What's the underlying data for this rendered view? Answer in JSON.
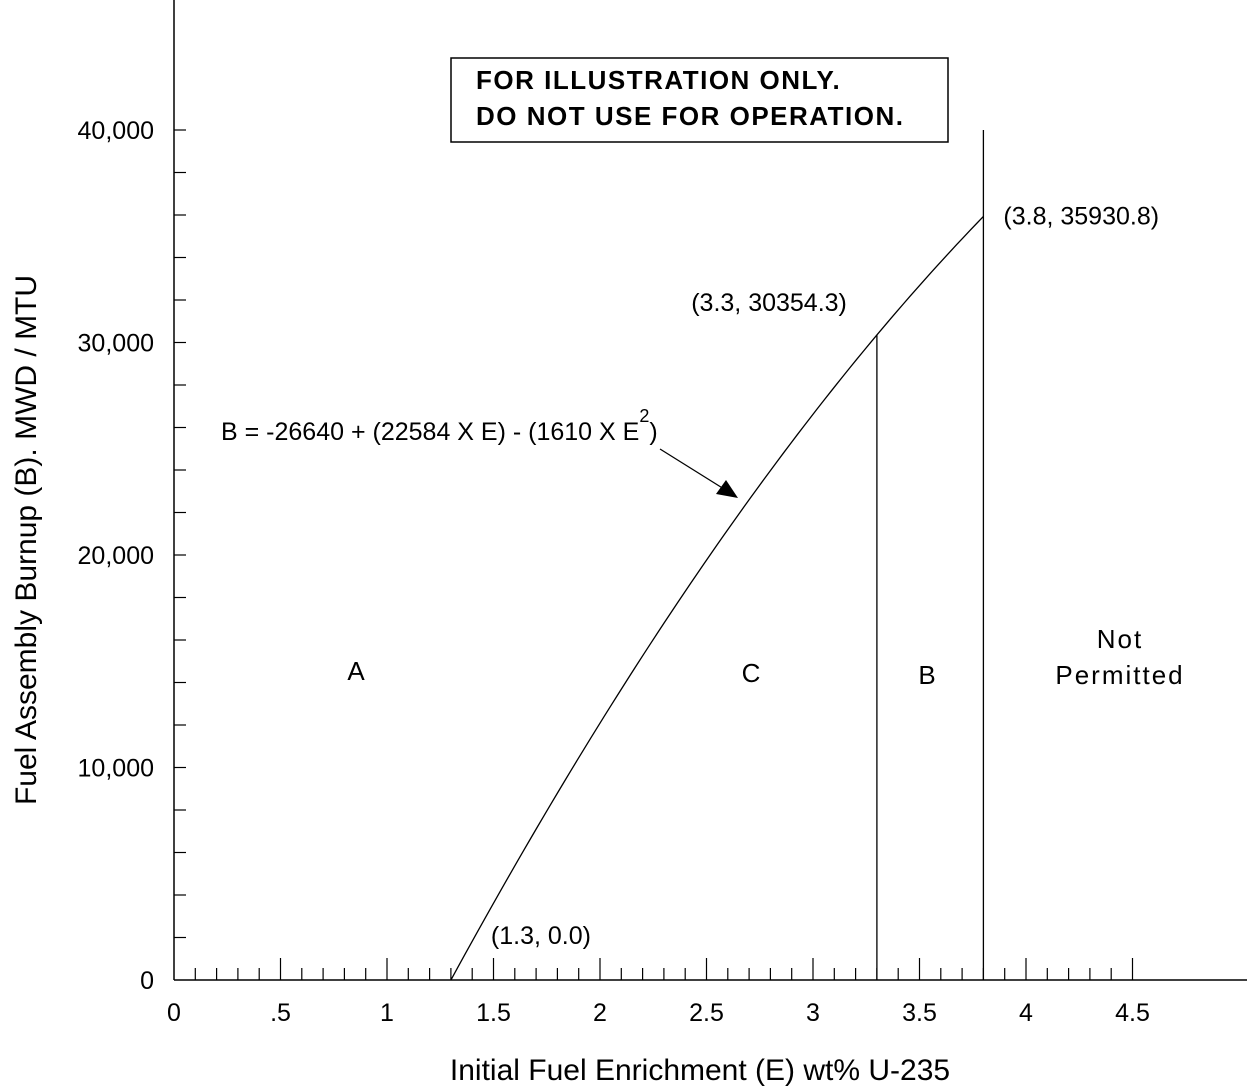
{
  "chart_data": {
    "type": "line",
    "xlabel": "Initial Fuel Enrichment (E)  wt% U-235",
    "ylabel": "Fuel Assembly Burnup  (B). MWD / MTU",
    "xlim": [
      0,
      5
    ],
    "ylim": [
      0,
      40000
    ],
    "x_ticks": [
      {
        "value": 0,
        "label": "0"
      },
      {
        "value": 0.5,
        "label": ".5"
      },
      {
        "value": 1,
        "label": "1"
      },
      {
        "value": 1.5,
        "label": "1.5"
      },
      {
        "value": 2,
        "label": "2"
      },
      {
        "value": 2.5,
        "label": "2.5"
      },
      {
        "value": 3,
        "label": "3"
      },
      {
        "value": 3.5,
        "label": "3.5"
      },
      {
        "value": 4,
        "label": "4"
      },
      {
        "value": 4.5,
        "label": "4.5"
      }
    ],
    "y_ticks": [
      {
        "value": 0,
        "label": "0"
      },
      {
        "value": 10000,
        "label": "10,000"
      },
      {
        "value": 20000,
        "label": "20,000"
      },
      {
        "value": 30000,
        "label": "30,000"
      },
      {
        "value": 40000,
        "label": "40,000"
      }
    ],
    "x_minor_step": 0.1,
    "y_minor_step": 2000,
    "grid": false,
    "curve": {
      "equation_label": "B = -26640 + (22584 X E) - (1610 X E",
      "equation_superscript": "2",
      "equation_close": ")",
      "coefficients": {
        "c0": -26640,
        "c1": 22584,
        "c2": -1610
      },
      "e_start": 1.3,
      "e_end": 3.8
    },
    "vertical_lines": [
      {
        "x": 3.3,
        "y_top": 30354.3
      },
      {
        "x": 3.8,
        "y_top": 40000
      }
    ],
    "points": [
      {
        "x": 1.3,
        "y": 0.0,
        "label": "(1.3, 0.0)"
      },
      {
        "x": 3.3,
        "y": 30354.3,
        "label": "(3.3, 30354.3)"
      },
      {
        "x": 3.8,
        "y": 35930.8,
        "label": "(3.8, 35930.8)"
      }
    ],
    "regions": [
      {
        "label": "A"
      },
      {
        "label": "C"
      },
      {
        "label": "B"
      },
      {
        "label_line1": "Not",
        "label_line2": "Permitted"
      }
    ],
    "notice_lines": [
      "FOR ILLUSTRATION ONLY.",
      "DO NOT USE FOR OPERATION."
    ]
  }
}
